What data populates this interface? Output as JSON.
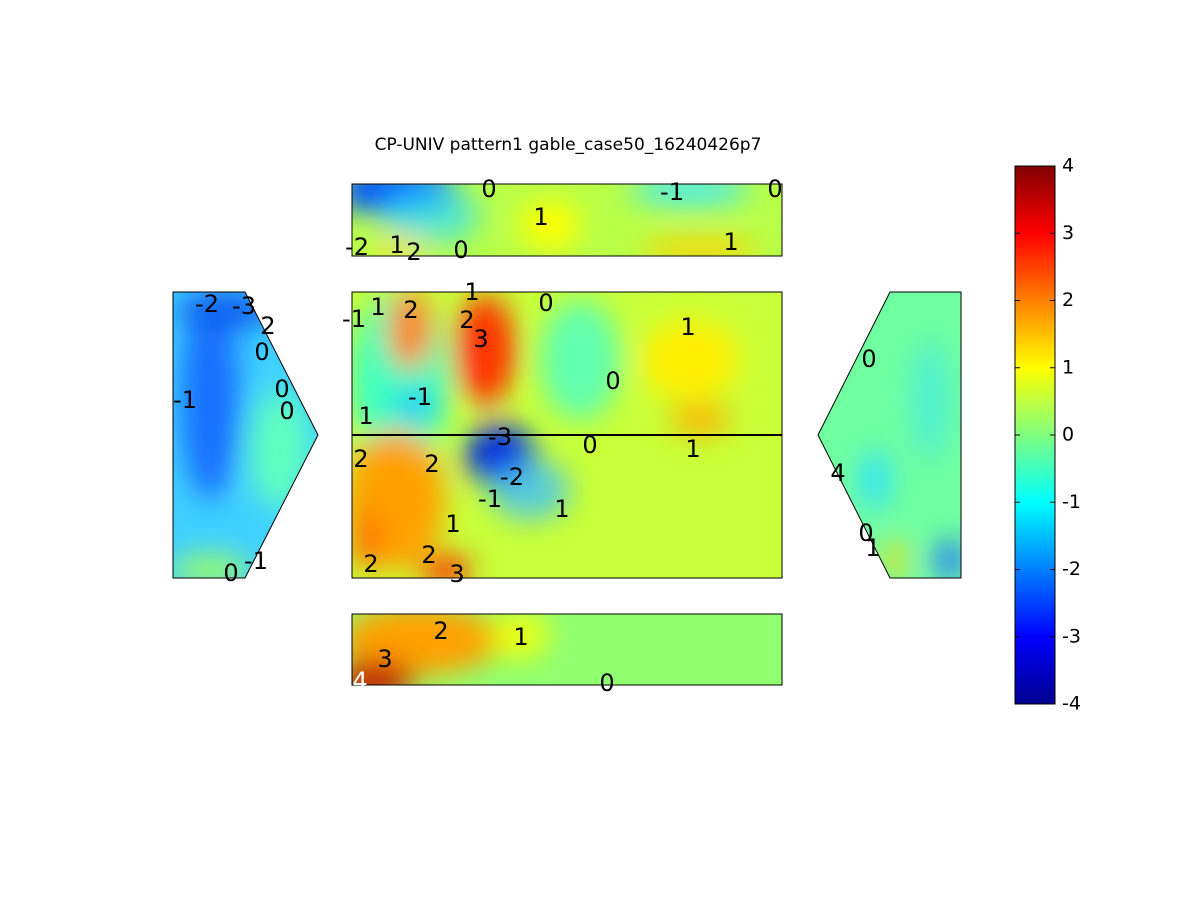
{
  "chart_data": {
    "type": "contour",
    "title": "CP-UNIV pattern1 gable_case50_16240426p7",
    "colorbar": {
      "clim": [
        -4,
        4
      ],
      "ticks": [
        -4,
        -3,
        -2,
        -1,
        0,
        1,
        2,
        3,
        4
      ],
      "colormap": "jet"
    },
    "contour_labels": [
      0,
      -1,
      0,
      1,
      -2,
      1,
      2,
      0,
      1,
      1,
      0,
      -1,
      1,
      2,
      2,
      3,
      1,
      0,
      -1,
      1,
      -3,
      0,
      1,
      2,
      2,
      -2,
      -1,
      1,
      1,
      2,
      2,
      3,
      2,
      1,
      3,
      4,
      0,
      -2,
      -3,
      2,
      0,
      0,
      0,
      -1,
      0,
      -1,
      0,
      4,
      0,
      1
    ]
  }
}
